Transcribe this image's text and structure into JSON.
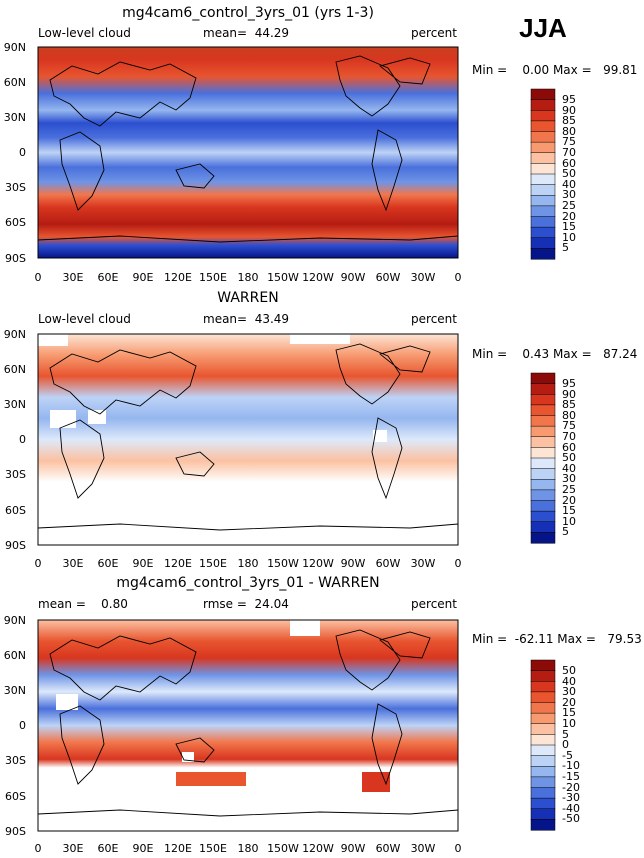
{
  "season": "JJA",
  "chart_data": [
    {
      "type": "heatmap",
      "title": "mg4cam6_control_3yrs_01 (yrs 1-3)",
      "left_label": "Low-level cloud",
      "center_label": "mean=  44.29",
      "right_label": "percent",
      "stats": "Min =    0.00 Max =   99.81",
      "xticks": [
        "0",
        "30E",
        "60E",
        "90E",
        "120E",
        "150E",
        "180",
        "150W",
        "120W",
        "90W",
        "60W",
        "30W",
        "0"
      ],
      "yticks": [
        "90N",
        "60N",
        "30N",
        "0",
        "30S",
        "60S",
        "90S"
      ],
      "colorbar": [
        "95",
        "90",
        "85",
        "80",
        "75",
        "70",
        "60",
        "50",
        "40",
        "30",
        "25",
        "20",
        "15",
        "10",
        "5"
      ],
      "colorbar_colors": [
        "#8c0a08",
        "#b51c12",
        "#d8361f",
        "#e8552f",
        "#f2764b",
        "#f79a70",
        "#fbc1a2",
        "#fde5d6",
        "#dde9fb",
        "#bdd3f6",
        "#95b6ef",
        "#6f94e6",
        "#4a70dc",
        "#2c4fd0",
        "#1530b4",
        "#06148a"
      ],
      "ylim": [
        -90,
        90
      ],
      "xlim": [
        0,
        360
      ]
    },
    {
      "type": "heatmap",
      "title": "WARREN",
      "left_label": "Low-level cloud",
      "center_label": "mean=  43.49",
      "right_label": "percent",
      "stats": "Min =    0.43 Max =   87.24",
      "xticks": [
        "0",
        "30E",
        "60E",
        "90E",
        "120E",
        "150E",
        "180",
        "150W",
        "120W",
        "90W",
        "60W",
        "30W",
        "0"
      ],
      "yticks": [
        "90N",
        "60N",
        "30N",
        "0",
        "30S",
        "60S",
        "90S"
      ],
      "colorbar": [
        "95",
        "90",
        "85",
        "80",
        "75",
        "70",
        "60",
        "50",
        "40",
        "30",
        "25",
        "20",
        "15",
        "10",
        "5"
      ],
      "colorbar_colors": [
        "#8c0a08",
        "#b51c12",
        "#d8361f",
        "#e8552f",
        "#f2764b",
        "#f79a70",
        "#fbc1a2",
        "#fde5d6",
        "#dde9fb",
        "#bdd3f6",
        "#95b6ef",
        "#6f94e6",
        "#4a70dc",
        "#2c4fd0",
        "#1530b4",
        "#06148a"
      ],
      "ylim": [
        -90,
        90
      ],
      "xlim": [
        0,
        360
      ]
    },
    {
      "type": "heatmap",
      "title": "mg4cam6_control_3yrs_01 - WARREN",
      "left_label": "mean =    0.80",
      "center_label": "rmse =  24.04",
      "right_label": "percent",
      "stats": "Min =  -62.11 Max =   79.53",
      "xticks": [
        "0",
        "30E",
        "60E",
        "90E",
        "120E",
        "150E",
        "180",
        "150W",
        "120W",
        "90W",
        "60W",
        "30W",
        "0"
      ],
      "yticks": [
        "90N",
        "60N",
        "30N",
        "0",
        "30S",
        "60S",
        "90S"
      ],
      "colorbar": [
        "50",
        "40",
        "30",
        "20",
        "15",
        "10",
        "5",
        "0",
        "-5",
        "-10",
        "-15",
        "-20",
        "-30",
        "-40",
        "-50"
      ],
      "colorbar_colors": [
        "#8c0a08",
        "#b51c12",
        "#d8361f",
        "#e8552f",
        "#f2764b",
        "#f79a70",
        "#fbc1a2",
        "#fde5d6",
        "#dde9fb",
        "#bdd3f6",
        "#95b6ef",
        "#6f94e6",
        "#4a70dc",
        "#2c4fd0",
        "#1530b4",
        "#06148a"
      ],
      "ylim": [
        -90,
        90
      ],
      "xlim": [
        0,
        360
      ]
    }
  ]
}
